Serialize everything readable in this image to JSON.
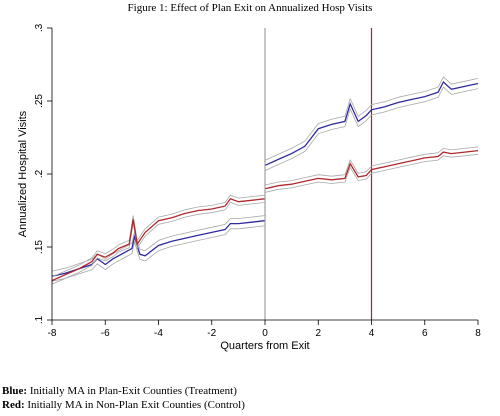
{
  "figure": {
    "title": "Figure 1: Effect of Plan Exit on Annualized Hosp Visits"
  },
  "legend_notes": [
    {
      "key": "Blue:",
      "text": "Initially MA in Plan-Exit Counties (Treatment)"
    },
    {
      "key": "Red:",
      "text": "Initially MA in Non-Plan Exit Counties (Control)"
    }
  ],
  "colors": {
    "treatment": "#2e2aa0",
    "control": "#b0282c",
    "ci_band": "#a8a8a8",
    "vline_zero": "#a0a0a0",
    "vline_four": "#b02030",
    "plot_bg": "#ffffff",
    "outer_bg": "#ffffff"
  },
  "chart_data": {
    "type": "line",
    "title": "",
    "xlabel": "Quarters from Exit",
    "ylabel": "Annualized Hospital Visits",
    "xlim": [
      -8,
      8
    ],
    "ylim": [
      0.1,
      0.3
    ],
    "xticks": [
      -8,
      -6,
      -4,
      -2,
      0,
      2,
      4,
      6,
      8
    ],
    "yticks": [
      0.1,
      0.15,
      0.2,
      0.25,
      0.3
    ],
    "ytick_labels": [
      ".1",
      ".15",
      ".2",
      ".25",
      ".3"
    ],
    "grid": false,
    "vlines": [
      {
        "x": 0,
        "color": "#a0a0a0"
      },
      {
        "x": 4,
        "color": "#b02030"
      }
    ],
    "series": [
      {
        "color": "#2e2aa0",
        "ci_halfwidth": 0.0035,
        "segments": [
          {
            "x": [
              -8,
              -7.5,
              -7,
              -6.5,
              -6.3,
              -6,
              -5.7,
              -5.5,
              -5,
              -4.9,
              -4.7,
              -4.5,
              -4,
              -3.5,
              -3,
              -2.5,
              -2,
              -1.5,
              -1.3,
              -1,
              -0.5,
              -0.02
            ],
            "y": [
              0.13,
              0.132,
              0.135,
              0.138,
              0.142,
              0.138,
              0.142,
              0.144,
              0.149,
              0.157,
              0.145,
              0.144,
              0.151,
              0.154,
              0.156,
              0.158,
              0.16,
              0.162,
              0.166,
              0.166,
              0.167,
              0.168
            ]
          },
          {
            "x": [
              0.02,
              0.5,
              1,
              1.5,
              2,
              2.5,
              3,
              3.2,
              3.5,
              3.8,
              4,
              4.5,
              5,
              5.5,
              6,
              6.5,
              6.7,
              7,
              7.5,
              8
            ],
            "y": [
              0.206,
              0.21,
              0.214,
              0.219,
              0.231,
              0.234,
              0.236,
              0.248,
              0.236,
              0.24,
              0.244,
              0.246,
              0.249,
              0.251,
              0.253,
              0.256,
              0.263,
              0.258,
              0.26,
              0.262
            ]
          }
        ]
      },
      {
        "color": "#b0282c",
        "ci_halfwidth": 0.0025,
        "segments": [
          {
            "x": [
              -8,
              -7.5,
              -7,
              -6.5,
              -6.3,
              -6,
              -5.7,
              -5.5,
              -5.1,
              -4.95,
              -4.8,
              -4.5,
              -4,
              -3.5,
              -3,
              -2.5,
              -2,
              -1.5,
              -1.3,
              -1,
              -0.5,
              -0.02
            ],
            "y": [
              0.127,
              0.131,
              0.135,
              0.14,
              0.145,
              0.143,
              0.146,
              0.149,
              0.152,
              0.169,
              0.152,
              0.16,
              0.168,
              0.17,
              0.173,
              0.175,
              0.176,
              0.178,
              0.183,
              0.181,
              0.182,
              0.183
            ]
          },
          {
            "x": [
              0.02,
              0.5,
              1,
              1.5,
              2,
              2.5,
              3,
              3.2,
              3.5,
              3.8,
              4,
              4.5,
              5,
              5.5,
              6,
              6.5,
              6.7,
              7,
              7.5,
              8
            ],
            "y": [
              0.19,
              0.192,
              0.193,
              0.195,
              0.197,
              0.196,
              0.197,
              0.207,
              0.198,
              0.199,
              0.203,
              0.205,
              0.207,
              0.209,
              0.211,
              0.212,
              0.215,
              0.214,
              0.215,
              0.216
            ]
          }
        ]
      }
    ]
  }
}
